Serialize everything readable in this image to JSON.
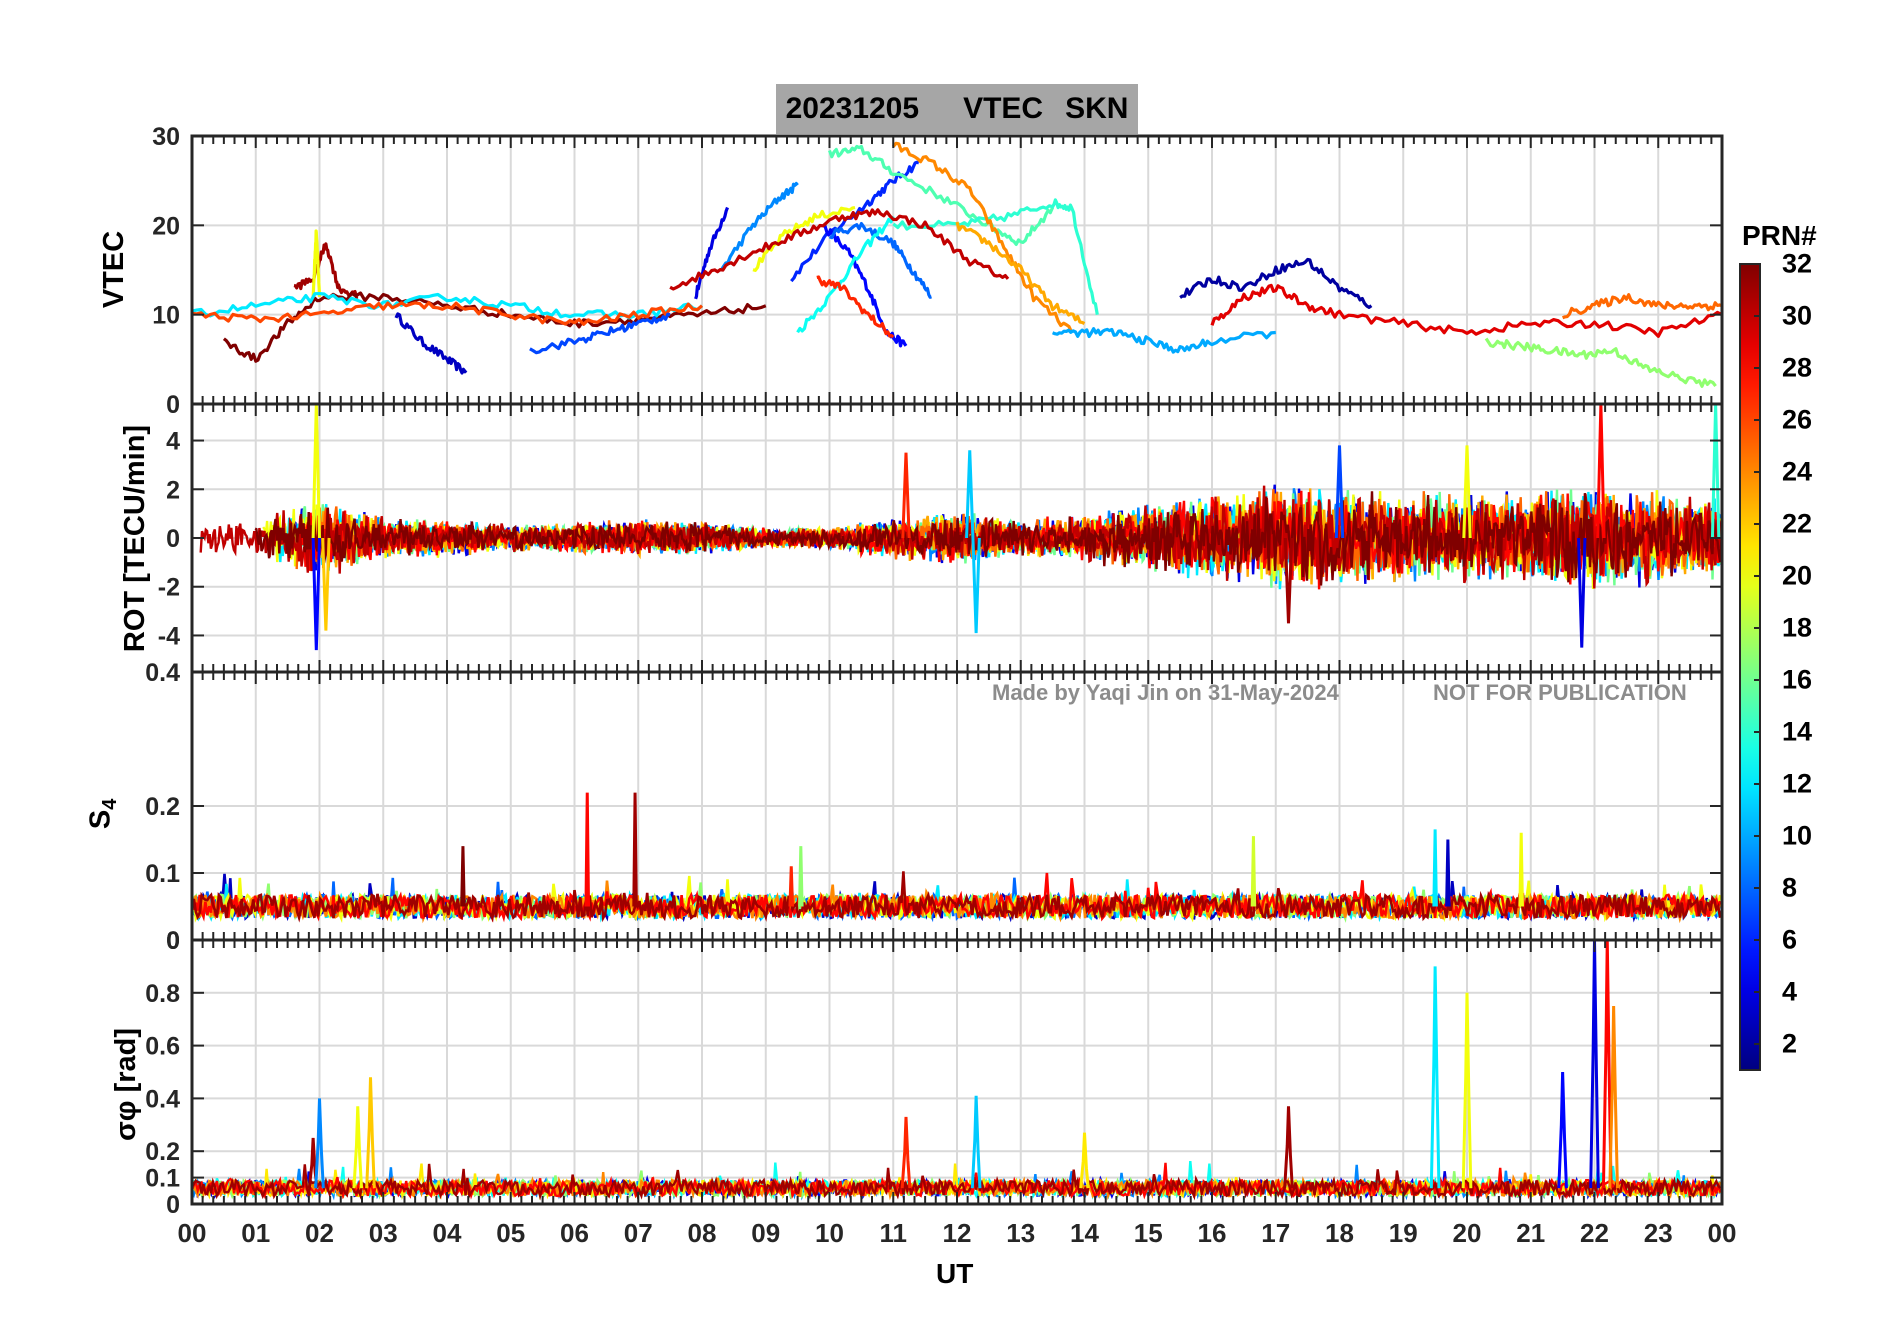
{
  "title": {
    "date": "20231205",
    "quantity": "VTEC",
    "station": "SKN"
  },
  "watermark": {
    "author": "Made by Yaqi Jin on 31-May-2024",
    "notice": "NOT FOR PUBLICATION"
  },
  "colorbar": {
    "label": "PRN#",
    "min": 1,
    "max": 32,
    "ticks": [
      "2",
      "4",
      "6",
      "8",
      "10",
      "12",
      "14",
      "16",
      "18",
      "20",
      "22",
      "24",
      "26",
      "28",
      "30",
      "32"
    ]
  },
  "chart_data": [
    {
      "type": "line",
      "panel": "VTEC",
      "ylabel": "VTEC",
      "ylim": [
        0,
        30
      ],
      "yticks": [
        "0",
        "10",
        "20",
        "30"
      ],
      "shown_yticks": [
        "10",
        "20",
        "30"
      ],
      "x_range_hours": [
        0,
        24
      ],
      "series": [
        {
          "name": "PRN 3",
          "prn": 3,
          "x": [
            3.2,
            3.6,
            4.0,
            4.3
          ],
          "values": [
            10,
            7,
            5,
            3.5
          ]
        },
        {
          "name": "PRN 4",
          "prn": 4,
          "x": [
            7.9,
            8.1,
            8.4
          ],
          "values": [
            12,
            17,
            22
          ]
        },
        {
          "name": "PRN 6",
          "prn": 6,
          "x": [
            9.4,
            10.0,
            10.6,
            11.0,
            11.4
          ],
          "values": [
            14,
            19,
            22.5,
            25,
            27
          ]
        },
        {
          "name": "PRN 5",
          "prn": 5,
          "x": [
            9.9,
            10.3,
            10.6,
            10.9,
            11.2
          ],
          "values": [
            20,
            17,
            13,
            8,
            6.5
          ]
        },
        {
          "name": "PRN 9",
          "prn": 9,
          "x": [
            8.3,
            8.8,
            9.2,
            9.5
          ],
          "values": [
            15,
            20,
            23,
            24.5
          ]
        },
        {
          "name": "PRN 8",
          "prn": 8,
          "x": [
            10.0,
            10.5,
            11.0,
            11.3,
            11.6
          ],
          "values": [
            19,
            20,
            18,
            15,
            12
          ]
        },
        {
          "name": "PRN 13",
          "prn": 13,
          "x": [
            9.5,
            10.0,
            10.5,
            11.0
          ],
          "values": [
            8,
            12,
            17,
            21
          ]
        },
        {
          "name": "PRN 15",
          "prn": 15,
          "x": [
            10.0,
            10.5,
            11.0,
            11.8,
            12.5,
            13.0,
            13.5
          ],
          "values": [
            28,
            28.5,
            26,
            23,
            20,
            18,
            22
          ]
        },
        {
          "name": "PRN 14",
          "prn": 14,
          "x": [
            11.0,
            12.0,
            12.8,
            13.5,
            13.8,
            14.2
          ],
          "values": [
            20,
            20,
            21,
            22.5,
            22,
            10
          ]
        },
        {
          "name": "PRN 20",
          "prn": 20,
          "x": [
            8.8,
            9.3,
            9.8,
            10.4
          ],
          "values": [
            15,
            19,
            21,
            22
          ]
        },
        {
          "name": "PRN 24",
          "prn": 24,
          "x": [
            11.0,
            11.6,
            12.2,
            12.7,
            13.2,
            13.8
          ],
          "values": [
            29,
            27,
            24,
            18,
            12,
            8
          ]
        },
        {
          "name": "PRN 23",
          "prn": 23,
          "x": [
            12.0,
            12.5,
            13.0,
            13.5,
            14.0
          ],
          "values": [
            20,
            18,
            15,
            11,
            9
          ]
        },
        {
          "name": "PRN 30",
          "prn": 30,
          "x": [
            7.5,
            8.2,
            8.8,
            9.5,
            10.2,
            10.8,
            11.5,
            12.2,
            12.8
          ],
          "values": [
            13,
            15,
            17,
            19,
            21,
            21.5,
            20,
            16,
            14
          ]
        },
        {
          "name": "PRN 27",
          "prn": 27,
          "x": [
            9.8,
            10.2,
            10.6,
            11.0
          ],
          "values": [
            14,
            13,
            10,
            7.5
          ]
        },
        {
          "name": "PRN 31",
          "prn": 31,
          "x": [
            1.6,
            1.9,
            2.1,
            2.3,
            2.6
          ],
          "values": [
            13,
            14,
            18,
            13,
            12
          ]
        },
        {
          "name": "PRN 20b",
          "prn": 20,
          "x": [
            1.9,
            1.95,
            2.0
          ],
          "values": [
            12,
            19.5,
            12
          ]
        },
        {
          "name": "PRN 32",
          "prn": 32,
          "x": [
            0.5,
            1.0,
            1.5,
            2.0,
            3.0,
            4.0,
            5.0,
            6.0,
            7.0,
            8.0,
            9.0
          ],
          "values": [
            7,
            5,
            9,
            12,
            12,
            11,
            10,
            9,
            9.5,
            10,
            11
          ]
        },
        {
          "name": "PRN 12",
          "prn": 12,
          "x": [
            0,
            1,
            2,
            3,
            4,
            5,
            6,
            7,
            8
          ],
          "values": [
            10,
            11,
            12,
            11,
            12,
            11,
            10,
            10,
            11
          ]
        },
        {
          "name": "PRN 26",
          "prn": 26,
          "x": [
            0,
            1,
            2,
            3,
            4,
            5,
            6,
            7,
            8
          ],
          "values": [
            10,
            9.5,
            10,
            11,
            11,
            10,
            9,
            10,
            11
          ]
        },
        {
          "name": "PRN 7",
          "prn": 7,
          "x": [
            5.3,
            6.0,
            6.5,
            7.0,
            7.5
          ],
          "values": [
            6,
            7,
            8,
            9,
            10
          ]
        },
        {
          "name": "PRN 2",
          "prn": 2,
          "x": [
            15.5,
            16,
            16.5,
            17,
            17.5,
            18,
            18.5
          ],
          "values": [
            12,
            14,
            13,
            15,
            16,
            13,
            11
          ]
        },
        {
          "name": "PRN 29",
          "prn": 29,
          "x": [
            16,
            16.5,
            17,
            17.5,
            18,
            19,
            20,
            21,
            22,
            23,
            24
          ],
          "values": [
            9,
            12,
            13,
            11,
            10,
            9,
            8,
            9,
            9,
            8,
            10
          ]
        },
        {
          "name": "PRN 17",
          "prn": 17,
          "x": [
            20.3,
            20.8,
            21.3,
            21.8,
            22.3,
            22.8,
            23.3,
            23.9
          ],
          "values": [
            7,
            6.5,
            6,
            5.5,
            6,
            4,
            3,
            2
          ]
        },
        {
          "name": "PRN 25",
          "prn": 25,
          "x": [
            21.5,
            22,
            22.5,
            23,
            23.5,
            24
          ],
          "values": [
            10,
            11,
            12,
            11,
            11,
            11
          ]
        },
        {
          "name": "PRN 10",
          "prn": 10,
          "x": [
            13.5,
            14,
            14.5,
            15,
            15.5,
            16,
            17
          ],
          "values": [
            8,
            8,
            8,
            7,
            6,
            7,
            8
          ]
        }
      ]
    },
    {
      "type": "line",
      "panel": "ROT",
      "ylabel": "ROT [TECU/min]",
      "ylim": [
        -5.5,
        5.5
      ],
      "yticks": [
        "-4",
        "-2",
        "0",
        "2",
        "4"
      ],
      "shown_yticks": [
        "-4",
        "-2",
        "0",
        "2",
        "4"
      ],
      "x_range_hours": [
        0,
        24
      ],
      "note": "Dense noisy traces centered at 0; amplitude envelope per hour given below.",
      "envelope_x": [
        0,
        1,
        2,
        3,
        4,
        5,
        6,
        7,
        8,
        9,
        10,
        11,
        12,
        13,
        14,
        15,
        16,
        17,
        18,
        19,
        20,
        21,
        22,
        23,
        24
      ],
      "envelope_amplitude": [
        0.6,
        0.8,
        1.5,
        0.8,
        0.7,
        0.5,
        0.6,
        0.7,
        0.6,
        0.4,
        0.4,
        0.8,
        1.0,
        0.7,
        0.9,
        1.3,
        1.6,
        2.0,
        1.8,
        1.7,
        1.7,
        1.8,
        2.0,
        1.8,
        1.6
      ],
      "spikes": [
        {
          "x": 1.95,
          "value": 5.5,
          "prn": 20
        },
        {
          "x": 1.95,
          "value": -4.6,
          "prn": 5
        },
        {
          "x": 2.1,
          "value": -3.8,
          "prn": 22
        },
        {
          "x": 11.2,
          "value": 3.5,
          "prn": 27
        },
        {
          "x": 12.3,
          "value": -3.9,
          "prn": 11
        },
        {
          "x": 12.2,
          "value": 3.6,
          "prn": 11
        },
        {
          "x": 17.2,
          "value": -3.5,
          "prn": 31
        },
        {
          "x": 18.0,
          "value": 3.8,
          "prn": 7
        },
        {
          "x": 20.0,
          "value": 3.8,
          "prn": 20
        },
        {
          "x": 21.8,
          "value": -4.5,
          "prn": 4
        },
        {
          "x": 22.1,
          "value": 5.5,
          "prn": 28
        },
        {
          "x": 23.9,
          "value": 5.5,
          "prn": 14
        }
      ]
    },
    {
      "type": "line",
      "panel": "S4",
      "ylabel": "S4",
      "ylim": [
        0,
        0.4
      ],
      "yticks": [
        "0",
        "0.1",
        "0.2",
        "0.4"
      ],
      "shown_yticks": [
        "0",
        "0.1",
        "0.2"
      ],
      "x_range_hours": [
        0,
        24
      ],
      "baseline": 0.05,
      "spikes": [
        {
          "x": 4.25,
          "value": 0.14,
          "prn": 32
        },
        {
          "x": 6.2,
          "value": 0.22,
          "prn": 28
        },
        {
          "x": 6.95,
          "value": 0.22,
          "prn": 31
        },
        {
          "x": 9.4,
          "value": 0.11,
          "prn": 27
        },
        {
          "x": 9.55,
          "value": 0.14,
          "prn": 17
        },
        {
          "x": 16.65,
          "value": 0.155,
          "prn": 19
        },
        {
          "x": 19.5,
          "value": 0.165,
          "prn": 12
        },
        {
          "x": 19.7,
          "value": 0.15,
          "prn": 3
        },
        {
          "x": 20.85,
          "value": 0.16,
          "prn": 20
        }
      ]
    },
    {
      "type": "line",
      "panel": "sigma_phi",
      "ylabel": "σφ [rad]",
      "ylim": [
        0,
        1.0
      ],
      "yticks": [
        "0",
        "0.1",
        "0.2",
        "0.4",
        "0.6",
        "0.8"
      ],
      "shown_yticks": [
        "0",
        "0.1",
        "0.2",
        "0.4",
        "0.6",
        "0.8"
      ],
      "x_range_hours": [
        0,
        24
      ],
      "baseline": 0.06,
      "spikes": [
        {
          "x": 1.9,
          "value": 0.25,
          "prn": 31
        },
        {
          "x": 2.0,
          "value": 0.4,
          "prn": 9
        },
        {
          "x": 2.6,
          "value": 0.37,
          "prn": 20
        },
        {
          "x": 2.8,
          "value": 0.48,
          "prn": 22
        },
        {
          "x": 11.2,
          "value": 0.33,
          "prn": 27
        },
        {
          "x": 12.3,
          "value": 0.41,
          "prn": 11
        },
        {
          "x": 14.0,
          "value": 0.27,
          "prn": 21
        },
        {
          "x": 17.2,
          "value": 0.37,
          "prn": 31
        },
        {
          "x": 19.5,
          "value": 0.9,
          "prn": 12
        },
        {
          "x": 20.0,
          "value": 0.8,
          "prn": 20
        },
        {
          "x": 21.5,
          "value": 0.5,
          "prn": 5
        },
        {
          "x": 22.0,
          "value": 1.0,
          "prn": 4
        },
        {
          "x": 22.2,
          "value": 1.0,
          "prn": 28
        },
        {
          "x": 22.3,
          "value": 0.75,
          "prn": 24
        }
      ]
    }
  ],
  "x_axis": {
    "label": "UT",
    "ticks": [
      "00",
      "01",
      "02",
      "03",
      "04",
      "05",
      "06",
      "07",
      "08",
      "09",
      "10",
      "11",
      "12",
      "13",
      "14",
      "15",
      "16",
      "17",
      "18",
      "19",
      "20",
      "21",
      "22",
      "23",
      "00"
    ]
  },
  "colors": {
    "title_bg": "#a6a6a6",
    "watermark": "#8c8c8c",
    "grid": "#d9d9d9"
  }
}
